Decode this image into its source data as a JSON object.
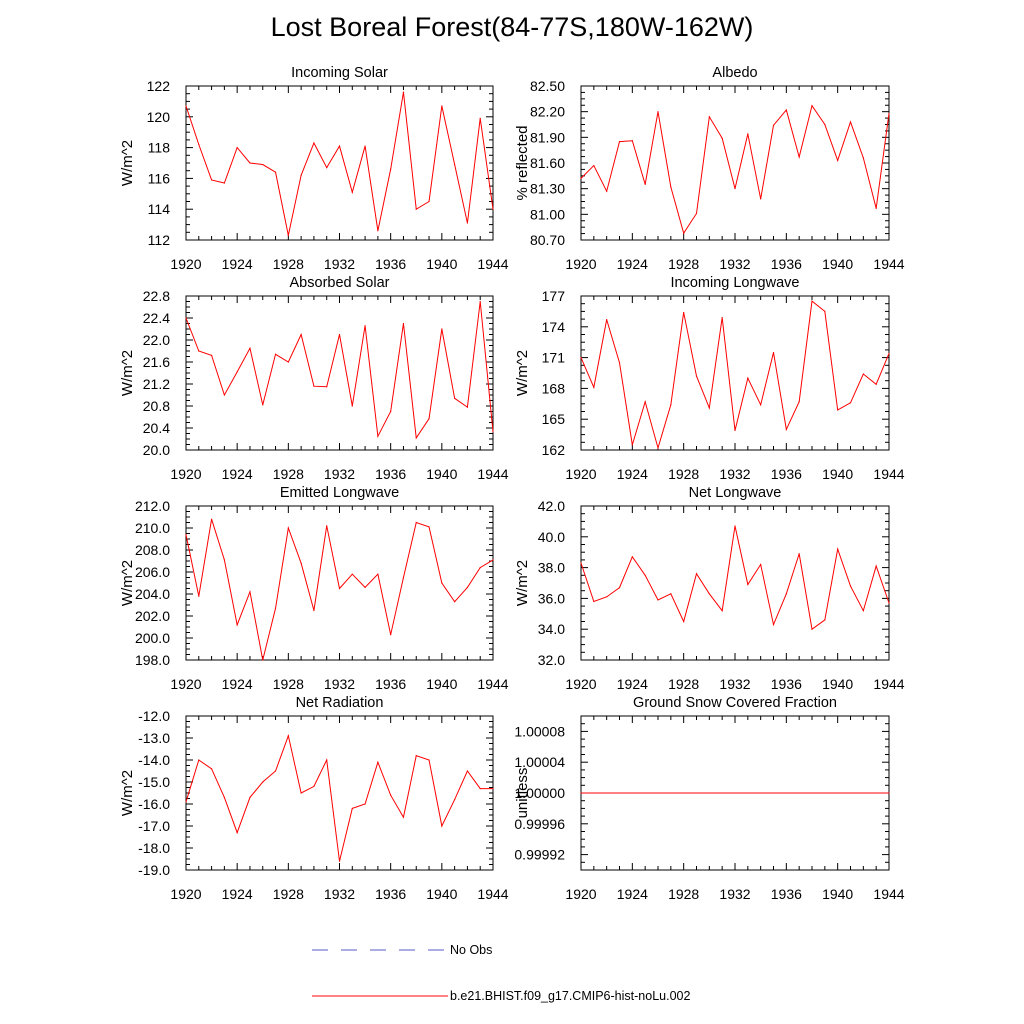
{
  "page": {
    "title": "Lost Boreal Forest(84-77S,180W-162W)"
  },
  "legend": {
    "entries": [
      {
        "label": "No Obs",
        "color": "#5a5ac8",
        "dash": true
      },
      {
        "label": "b.e21.BHIST.f09_g17.CMIP6-hist-noLu.002",
        "color": "#ff0000",
        "dash": false
      }
    ]
  },
  "chart_data": [
    {
      "type": "line",
      "title": "Incoming Solar",
      "ylabel": "W/m^2",
      "xlim": [
        1920,
        1944
      ],
      "ylim": [
        112,
        122
      ],
      "xticks": [
        "1920",
        "1924",
        "1928",
        "1932",
        "1936",
        "1940",
        "1944"
      ],
      "yticks": [
        "112",
        "114",
        "116",
        "118",
        "120",
        "122"
      ],
      "x": [
        1920,
        1921,
        1922,
        1923,
        1924,
        1925,
        1926,
        1927,
        1928,
        1929,
        1930,
        1931,
        1932,
        1933,
        1934,
        1935,
        1936,
        1937,
        1938,
        1939,
        1940,
        1941,
        1942,
        1943,
        1944
      ],
      "series": [
        {
          "color": "#ff0000",
          "values": [
            120.7,
            118.2,
            115.9,
            115.7,
            118.0,
            117.0,
            116.9,
            116.4,
            112.3,
            116.2,
            118.3,
            116.7,
            118.1,
            115.1,
            118.1,
            112.6,
            116.6,
            121.6,
            114.0,
            114.5,
            120.7,
            116.9,
            113.1,
            119.9,
            114.0
          ]
        }
      ]
    },
    {
      "type": "line",
      "title": "Albedo",
      "ylabel": "% reflected",
      "xlim": [
        1920,
        1944
      ],
      "ylim": [
        80.7,
        82.5
      ],
      "xticks": [
        "1920",
        "1924",
        "1928",
        "1932",
        "1936",
        "1940",
        "1944"
      ],
      "yticks": [
        "80.70",
        "81.00",
        "81.30",
        "81.60",
        "81.90",
        "82.20",
        "82.50"
      ],
      "x": [
        1920,
        1921,
        1922,
        1923,
        1924,
        1925,
        1926,
        1927,
        1928,
        1929,
        1930,
        1931,
        1932,
        1933,
        1934,
        1935,
        1936,
        1937,
        1938,
        1939,
        1940,
        1941,
        1942,
        1943,
        1944
      ],
      "series": [
        {
          "color": "#ff0000",
          "values": [
            81.42,
            81.57,
            81.27,
            81.85,
            81.86,
            81.35,
            82.2,
            81.32,
            80.78,
            81.01,
            82.14,
            81.89,
            81.3,
            81.94,
            81.18,
            82.04,
            82.22,
            81.67,
            82.27,
            82.05,
            81.63,
            82.08,
            81.66,
            81.07,
            82.18
          ]
        }
      ]
    },
    {
      "type": "line",
      "title": "Absorbed Solar",
      "ylabel": "W/m^2",
      "xlim": [
        1920,
        1944
      ],
      "ylim": [
        20.0,
        22.8
      ],
      "xticks": [
        "1920",
        "1924",
        "1928",
        "1932",
        "1936",
        "1940",
        "1944"
      ],
      "yticks": [
        "20.0",
        "20.4",
        "20.8",
        "21.2",
        "21.6",
        "22.0",
        "22.4",
        "22.8"
      ],
      "x": [
        1920,
        1921,
        1922,
        1923,
        1924,
        1925,
        1926,
        1927,
        1928,
        1929,
        1930,
        1931,
        1932,
        1933,
        1934,
        1935,
        1936,
        1937,
        1938,
        1939,
        1940,
        1941,
        1942,
        1943,
        1944
      ],
      "series": [
        {
          "color": "#ff0000",
          "values": [
            22.4,
            21.8,
            21.72,
            21.0,
            21.42,
            21.85,
            20.82,
            21.74,
            21.6,
            22.1,
            21.16,
            21.15,
            22.1,
            20.8,
            22.26,
            20.25,
            20.7,
            22.3,
            20.22,
            20.57,
            22.2,
            20.94,
            20.78,
            22.7,
            20.33
          ]
        }
      ]
    },
    {
      "type": "line",
      "title": "Incoming Longwave",
      "ylabel": "W/m^2",
      "xlim": [
        1920,
        1944
      ],
      "ylim": [
        162,
        177
      ],
      "xticks": [
        "1920",
        "1924",
        "1928",
        "1932",
        "1936",
        "1940",
        "1944"
      ],
      "yticks": [
        "162",
        "165",
        "168",
        "171",
        "174",
        "177"
      ],
      "x": [
        1920,
        1921,
        1922,
        1923,
        1924,
        1925,
        1926,
        1927,
        1928,
        1929,
        1930,
        1931,
        1932,
        1933,
        1934,
        1935,
        1936,
        1937,
        1938,
        1939,
        1940,
        1941,
        1942,
        1943,
        1944
      ],
      "series": [
        {
          "color": "#ff0000",
          "values": [
            171.0,
            168.1,
            174.7,
            170.5,
            162.5,
            166.7,
            162.2,
            166.4,
            175.4,
            169.2,
            166.1,
            174.9,
            163.9,
            169.0,
            166.4,
            171.5,
            164.0,
            166.7,
            176.5,
            175.5,
            165.9,
            166.6,
            169.4,
            168.4,
            171.4
          ]
        }
      ]
    },
    {
      "type": "line",
      "title": "Emitted Longwave",
      "ylabel": "W/m^2",
      "xlim": [
        1920,
        1944
      ],
      "ylim": [
        198.0,
        212.0
      ],
      "xticks": [
        "1920",
        "1924",
        "1928",
        "1932",
        "1936",
        "1940",
        "1944"
      ],
      "yticks": [
        "198.0",
        "200.0",
        "202.0",
        "204.0",
        "206.0",
        "208.0",
        "210.0",
        "212.0"
      ],
      "x": [
        1920,
        1921,
        1922,
        1923,
        1924,
        1925,
        1926,
        1927,
        1928,
        1929,
        1930,
        1931,
        1932,
        1933,
        1934,
        1935,
        1936,
        1937,
        1938,
        1939,
        1940,
        1941,
        1942,
        1943,
        1944
      ],
      "series": [
        {
          "color": "#ff0000",
          "values": [
            209.4,
            203.8,
            210.8,
            207.1,
            201.2,
            204.2,
            198.0,
            202.7,
            210.0,
            206.8,
            202.5,
            210.2,
            204.5,
            205.8,
            204.6,
            205.8,
            200.3,
            205.5,
            210.5,
            210.1,
            205.0,
            203.3,
            204.6,
            206.4,
            207.1
          ]
        }
      ]
    },
    {
      "type": "line",
      "title": "Net Longwave",
      "ylabel": "W/m^2",
      "xlim": [
        1920,
        1944
      ],
      "ylim": [
        32.0,
        42.0
      ],
      "xticks": [
        "1920",
        "1924",
        "1928",
        "1932",
        "1936",
        "1940",
        "1944"
      ],
      "yticks": [
        "32.0",
        "34.0",
        "36.0",
        "38.0",
        "40.0",
        "42.0"
      ],
      "x": [
        1920,
        1921,
        1922,
        1923,
        1924,
        1925,
        1926,
        1927,
        1928,
        1929,
        1930,
        1931,
        1932,
        1933,
        1934,
        1935,
        1936,
        1937,
        1938,
        1939,
        1940,
        1941,
        1942,
        1943,
        1944
      ],
      "series": [
        {
          "color": "#ff0000",
          "values": [
            38.3,
            35.8,
            36.1,
            36.7,
            38.7,
            37.5,
            35.9,
            36.3,
            34.5,
            37.6,
            36.3,
            35.2,
            40.7,
            36.9,
            38.2,
            34.3,
            36.3,
            38.9,
            34.0,
            34.6,
            39.2,
            36.8,
            35.2,
            38.1,
            35.7
          ]
        }
      ]
    },
    {
      "type": "line",
      "title": "Net Radiation",
      "ylabel": "W/m^2",
      "xlim": [
        1920,
        1944
      ],
      "ylim": [
        -19.0,
        -12.0
      ],
      "xticks": [
        "1920",
        "1924",
        "1928",
        "1932",
        "1936",
        "1940",
        "1944"
      ],
      "yticks": [
        "-19.0",
        "-18.0",
        "-17.0",
        "-16.0",
        "-15.0",
        "-14.0",
        "-13.0",
        "-12.0"
      ],
      "x": [
        1920,
        1921,
        1922,
        1923,
        1924,
        1925,
        1926,
        1927,
        1928,
        1929,
        1930,
        1931,
        1932,
        1933,
        1934,
        1935,
        1936,
        1937,
        1938,
        1939,
        1940,
        1941,
        1942,
        1943,
        1944
      ],
      "series": [
        {
          "color": "#ff0000",
          "values": [
            -15.9,
            -14.0,
            -14.4,
            -15.7,
            -17.3,
            -15.7,
            -15.0,
            -14.5,
            -12.9,
            -15.5,
            -15.2,
            -14.0,
            -18.6,
            -16.2,
            -16.0,
            -14.1,
            -15.6,
            -16.6,
            -13.8,
            -14.0,
            -17.0,
            -15.8,
            -14.5,
            -15.3,
            -15.3
          ]
        }
      ]
    },
    {
      "type": "line",
      "title": "Ground Snow Covered Fraction",
      "ylabel": "unitless",
      "xlim": [
        1920,
        1944
      ],
      "ylim": [
        0.9999,
        1.0001
      ],
      "xticks": [
        "1920",
        "1924",
        "1928",
        "1932",
        "1936",
        "1940",
        "1944"
      ],
      "yticks": [
        "0.99992",
        "0.99996",
        "1.00000",
        "1.00004",
        "1.00008"
      ],
      "ytickvalues": [
        0.99992,
        0.99996,
        1.0,
        1.00004,
        1.00008
      ],
      "x": [
        1920,
        1944
      ],
      "series": [
        {
          "color": "#ff0000",
          "values": [
            1.0,
            1.0
          ]
        }
      ]
    }
  ]
}
